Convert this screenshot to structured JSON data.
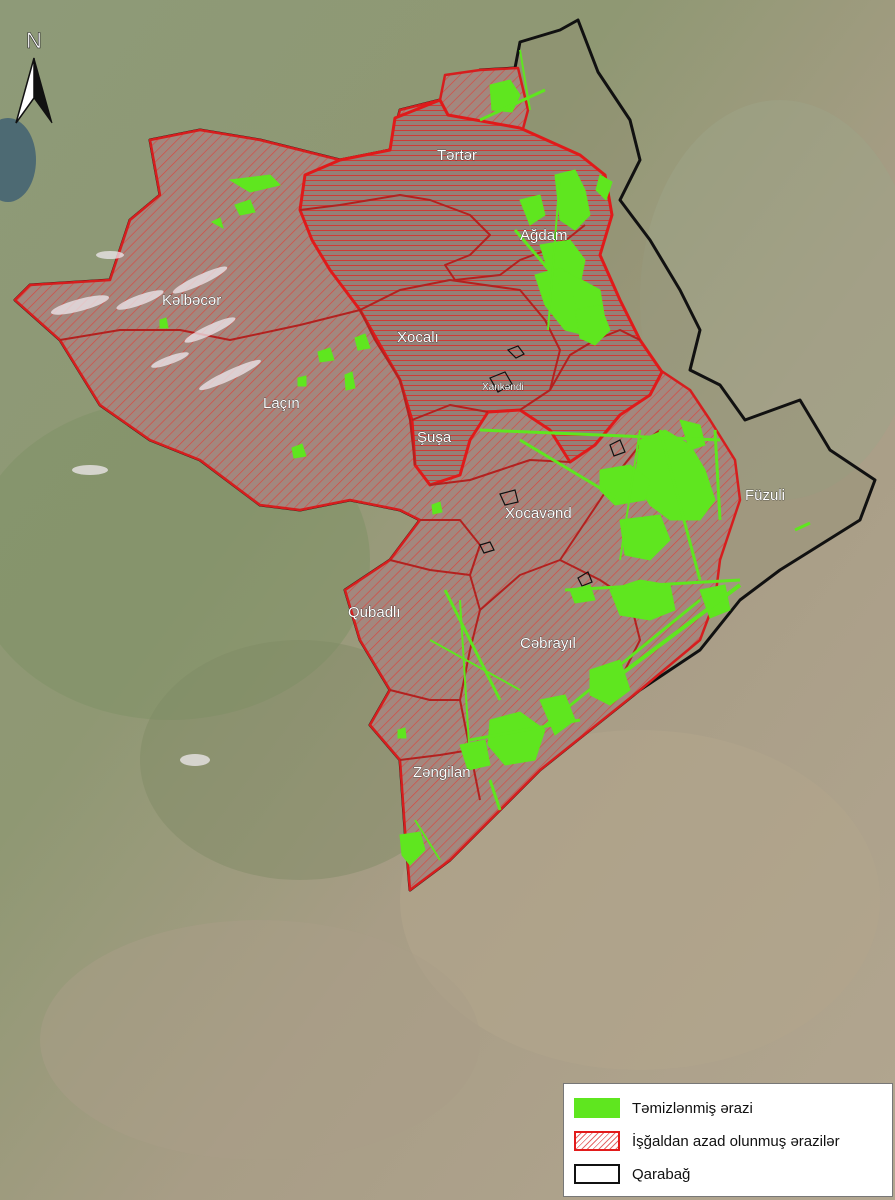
{
  "north_arrow": {
    "letter": "N"
  },
  "regions": [
    {
      "key": "kelbecer",
      "label": "Kəlbəcər"
    },
    {
      "key": "terter",
      "label": "Tərtər"
    },
    {
      "key": "agdam",
      "label": "Ağdam"
    },
    {
      "key": "xocali",
      "label": "Xocalı"
    },
    {
      "key": "xankendi",
      "label": "Xankəndi"
    },
    {
      "key": "lacin",
      "label": "Laçın"
    },
    {
      "key": "susa",
      "label": "Şuşa"
    },
    {
      "key": "xocavend",
      "label": "Xocavənd"
    },
    {
      "key": "fuzuli",
      "label": "Füzuli"
    },
    {
      "key": "qubadli",
      "label": "Qubadlı"
    },
    {
      "key": "cebrayil",
      "label": "Cəbrayıl"
    },
    {
      "key": "zengilan",
      "label": "Zəngilan"
    }
  ],
  "legend": {
    "items": [
      {
        "label": "Təmizlənmiş ərazi",
        "swatch": "green",
        "color": "#5fe61f"
      },
      {
        "label": "İşğaldan azad olunmuş ərazilər",
        "swatch": "hatch",
        "color": "#e21b1b"
      },
      {
        "label": "Qarabağ",
        "swatch": "outline",
        "color": "#111111"
      }
    ]
  }
}
